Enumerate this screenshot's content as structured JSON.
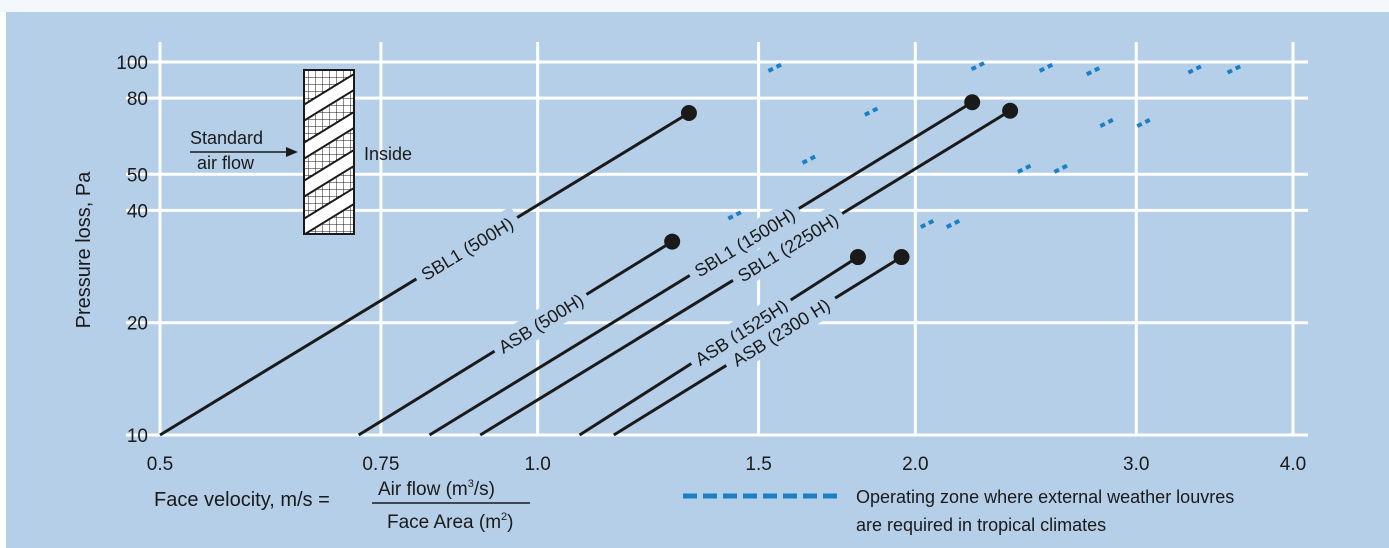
{
  "chart_data": {
    "type": "line",
    "x_scale": "log",
    "y_scale": "log",
    "xlim": [
      0.5,
      4.0
    ],
    "ylim": [
      10,
      100
    ],
    "x_ticks": [
      0.5,
      0.75,
      1.0,
      1.5,
      2.0,
      3.0,
      4.0
    ],
    "x_tick_labels": [
      "0.5",
      "0.75",
      "1.0",
      "1.5",
      "2.0",
      "3.0",
      "4.0"
    ],
    "y_ticks": [
      10,
      20,
      40,
      50,
      80,
      100
    ],
    "y_tick_labels": [
      "10",
      "20",
      "40",
      "50",
      "80",
      "100"
    ],
    "grid": true,
    "ylabel": "Pressure loss, Pa",
    "xlabel": {
      "prefix": "Face velocity, m/s =",
      "numerator": "Air flow (m",
      "numerator_sup": "3",
      "numerator_end": "/s)",
      "denominator": "Face Area (m",
      "denominator_sup": "2",
      "denominator_end": ")"
    },
    "series": [
      {
        "name": "SBL1 (500H)",
        "x": [
          0.5,
          1.32
        ],
        "y": [
          10,
          73
        ]
      },
      {
        "name": "ASB (500H)",
        "x": [
          0.72,
          1.28
        ],
        "y": [
          10,
          33
        ]
      },
      {
        "name": "SBL1 (1500H)",
        "x": [
          0.82,
          2.22
        ],
        "y": [
          10,
          78
        ]
      },
      {
        "name": "SBL1 (2250H)",
        "x": [
          0.9,
          2.38
        ],
        "y": [
          10,
          74
        ]
      },
      {
        "name": "ASB (1525H)",
        "x": [
          1.08,
          1.8
        ],
        "y": [
          10,
          30
        ]
      },
      {
        "name": "ASB (2300 H)",
        "x": [
          1.15,
          1.95
        ],
        "y": [
          10,
          30
        ]
      }
    ],
    "legend": {
      "line1": "Operating zone where external weather louvres",
      "line2": "are required in tropical climates",
      "color": "#1b7fc4",
      "placement": "bottom-right"
    },
    "zone_marks": [
      [
        1.55,
        97
      ],
      [
        2.25,
        98
      ],
      [
        2.55,
        97
      ],
      [
        2.78,
        95
      ],
      [
        3.35,
        96
      ],
      [
        3.6,
        96
      ],
      [
        1.85,
        74
      ],
      [
        2.85,
        69
      ],
      [
        3.05,
        69
      ],
      [
        1.65,
        55
      ],
      [
        2.45,
        52
      ],
      [
        2.62,
        52
      ],
      [
        1.44,
        39
      ],
      [
        2.05,
        37
      ],
      [
        2.15,
        37
      ]
    ],
    "diagram": {
      "inlet": "Standard",
      "inlet2": "air flow",
      "outlet": "Inside"
    },
    "colors": {
      "background": "#b6cfe8",
      "grid": "#ffffff",
      "series": "#1a1a1a",
      "zone": "#1b7fc4"
    }
  }
}
